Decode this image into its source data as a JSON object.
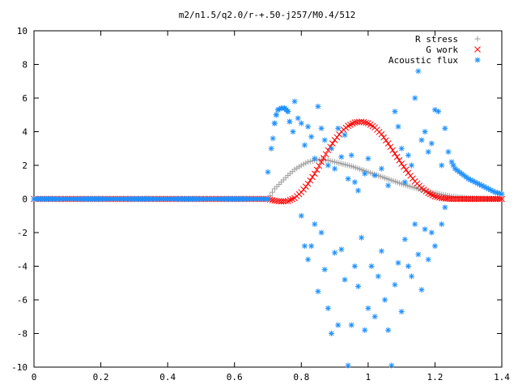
{
  "chart_data": {
    "type": "scatter",
    "title": "m2/n1.5/q2.0/r-+.50-j257/M0.4/512",
    "xlabel": "",
    "ylabel": "",
    "xlim": [
      0,
      1.4
    ],
    "ylim": [
      -10,
      10
    ],
    "x_ticks": [
      "0",
      "0.2",
      "0.4",
      "0.6",
      "0.8",
      "1",
      "1.2",
      "1.4"
    ],
    "y_ticks": [
      "10",
      "8",
      "6",
      "4",
      "2",
      "0",
      "-2",
      "-4",
      "-6",
      "-8",
      "-10"
    ],
    "grid": false,
    "legend_position": "top-right",
    "series": [
      {
        "name": "R stress",
        "marker": "plus",
        "color": "#a0a0a0",
        "points": [
          [
            0.0,
            0
          ],
          [
            0.1,
            0
          ],
          [
            0.2,
            0
          ],
          [
            0.3,
            0
          ],
          [
            0.4,
            0
          ],
          [
            0.5,
            0
          ],
          [
            0.6,
            0
          ],
          [
            0.7,
            0
          ],
          [
            0.72,
            0.6
          ],
          [
            0.74,
            1.0
          ],
          [
            0.76,
            1.4
          ],
          [
            0.78,
            1.75
          ],
          [
            0.8,
            2.0
          ],
          [
            0.82,
            2.2
          ],
          [
            0.84,
            2.3
          ],
          [
            0.86,
            2.35
          ],
          [
            0.88,
            2.3
          ],
          [
            0.9,
            2.2
          ],
          [
            0.95,
            1.95
          ],
          [
            1.0,
            1.6
          ],
          [
            1.05,
            1.25
          ],
          [
            1.1,
            0.9
          ],
          [
            1.15,
            0.6
          ],
          [
            1.2,
            0.35
          ],
          [
            1.25,
            0.15
          ],
          [
            1.3,
            0.05
          ],
          [
            1.35,
            0.02
          ],
          [
            1.4,
            0
          ]
        ]
      },
      {
        "name": "G work",
        "marker": "cross",
        "color": "#ff0000",
        "points": [
          [
            0.0,
            0
          ],
          [
            0.3,
            0
          ],
          [
            0.6,
            0
          ],
          [
            0.7,
            0
          ],
          [
            0.72,
            -0.1
          ],
          [
            0.74,
            -0.15
          ],
          [
            0.76,
            -0.12
          ],
          [
            0.78,
            0.05
          ],
          [
            0.8,
            0.4
          ],
          [
            0.82,
            0.9
          ],
          [
            0.84,
            1.5
          ],
          [
            0.86,
            2.2
          ],
          [
            0.88,
            2.9
          ],
          [
            0.9,
            3.5
          ],
          [
            0.92,
            4.0
          ],
          [
            0.94,
            4.35
          ],
          [
            0.96,
            4.55
          ],
          [
            0.98,
            4.6
          ],
          [
            1.0,
            4.5
          ],
          [
            1.02,
            4.25
          ],
          [
            1.04,
            3.85
          ],
          [
            1.06,
            3.3
          ],
          [
            1.08,
            2.7
          ],
          [
            1.1,
            2.1
          ],
          [
            1.12,
            1.55
          ],
          [
            1.14,
            1.05
          ],
          [
            1.16,
            0.65
          ],
          [
            1.18,
            0.35
          ],
          [
            1.2,
            0.15
          ],
          [
            1.22,
            0.05
          ],
          [
            1.25,
            0
          ],
          [
            1.3,
            0
          ],
          [
            1.35,
            0
          ],
          [
            1.4,
            0
          ]
        ]
      },
      {
        "name": "Acoustic flux",
        "marker": "star",
        "color": "#1e90ff",
        "points": [
          [
            0.0,
            0
          ],
          [
            0.1,
            0
          ],
          [
            0.2,
            0
          ],
          [
            0.3,
            0
          ],
          [
            0.4,
            0
          ],
          [
            0.5,
            0
          ],
          [
            0.6,
            0
          ],
          [
            0.7,
            0
          ],
          [
            0.7,
            1.6
          ],
          [
            0.71,
            3.0
          ],
          [
            0.715,
            3.6
          ],
          [
            0.72,
            4.5
          ],
          [
            0.725,
            5.0
          ],
          [
            0.73,
            5.3
          ],
          [
            0.74,
            5.4
          ],
          [
            0.75,
            5.4
          ],
          [
            0.76,
            5.2
          ],
          [
            0.765,
            4.6
          ],
          [
            0.775,
            4.0
          ],
          [
            0.78,
            5.8
          ],
          [
            0.79,
            4.8
          ],
          [
            0.8,
            4.5
          ],
          [
            0.81,
            3.2
          ],
          [
            0.82,
            4.3
          ],
          [
            0.83,
            3.7
          ],
          [
            0.84,
            2.4
          ],
          [
            0.85,
            5.5
          ],
          [
            0.86,
            4.2
          ],
          [
            0.87,
            3.5
          ],
          [
            0.88,
            2.0
          ],
          [
            0.89,
            3.0
          ],
          [
            0.9,
            1.8
          ],
          [
            0.91,
            4.2
          ],
          [
            0.92,
            2.5
          ],
          [
            0.93,
            3.8
          ],
          [
            0.94,
            1.2
          ],
          [
            0.95,
            2.6
          ],
          [
            0.96,
            1.0
          ],
          [
            0.97,
            0.5
          ],
          [
            0.99,
            1.5
          ],
          [
            1.0,
            2.4
          ],
          [
            1.02,
            1.4
          ],
          [
            1.04,
            1.8
          ],
          [
            1.06,
            0.8
          ],
          [
            1.08,
            5.2
          ],
          [
            1.09,
            4.3
          ],
          [
            1.1,
            3.0
          ],
          [
            1.11,
            1.0
          ],
          [
            1.12,
            2.6
          ],
          [
            1.13,
            2.0
          ],
          [
            1.14,
            6.0
          ],
          [
            1.15,
            7.6
          ],
          [
            1.16,
            3.5
          ],
          [
            1.17,
            4.0
          ],
          [
            1.18,
            2.8
          ],
          [
            1.19,
            3.3
          ],
          [
            1.2,
            5.3
          ],
          [
            1.21,
            5.2
          ],
          [
            1.22,
            2.0
          ],
          [
            1.23,
            4.2
          ],
          [
            1.24,
            2.8
          ],
          [
            1.25,
            2.2
          ],
          [
            1.26,
            1.8
          ],
          [
            1.28,
            1.5
          ],
          [
            1.3,
            1.2
          ],
          [
            1.32,
            1.0
          ],
          [
            1.34,
            0.8
          ],
          [
            1.36,
            0.6
          ],
          [
            1.38,
            0.4
          ],
          [
            1.4,
            0.3
          ],
          [
            0.8,
            -1.0
          ],
          [
            0.81,
            -2.8
          ],
          [
            0.82,
            -3.6
          ],
          [
            0.83,
            -2.8
          ],
          [
            0.84,
            -1.5
          ],
          [
            0.85,
            -5.5
          ],
          [
            0.86,
            -2.0
          ],
          [
            0.87,
            -4.2
          ],
          [
            0.88,
            -6.5
          ],
          [
            0.89,
            -8.0
          ],
          [
            0.9,
            -3.2
          ],
          [
            0.91,
            -7.5
          ],
          [
            0.92,
            -3.0
          ],
          [
            0.93,
            -4.8
          ],
          [
            0.94,
            -9.9
          ],
          [
            0.95,
            -7.5
          ],
          [
            0.96,
            -4.0
          ],
          [
            0.97,
            -5.2
          ],
          [
            0.98,
            -2.3
          ],
          [
            0.99,
            -7.8
          ],
          [
            1.0,
            -6.5
          ],
          [
            1.01,
            -4.0
          ],
          [
            1.02,
            -7.0
          ],
          [
            1.03,
            -4.6
          ],
          [
            1.04,
            -3.1
          ],
          [
            1.05,
            -6.0
          ],
          [
            1.06,
            -7.8
          ],
          [
            1.07,
            -9.9
          ],
          [
            1.08,
            -5.1
          ],
          [
            1.09,
            -3.8
          ],
          [
            1.1,
            -6.7
          ],
          [
            1.11,
            -2.4
          ],
          [
            1.12,
            -4.0
          ],
          [
            1.13,
            -4.6
          ],
          [
            1.14,
            -1.5
          ],
          [
            1.15,
            -3.3
          ],
          [
            1.16,
            -5.4
          ],
          [
            1.17,
            -1.8
          ],
          [
            1.18,
            -3.6
          ],
          [
            1.19,
            -2.0
          ],
          [
            1.2,
            -2.8
          ],
          [
            1.22,
            -1.5
          ],
          [
            1.23,
            -0.5
          ]
        ]
      }
    ]
  }
}
